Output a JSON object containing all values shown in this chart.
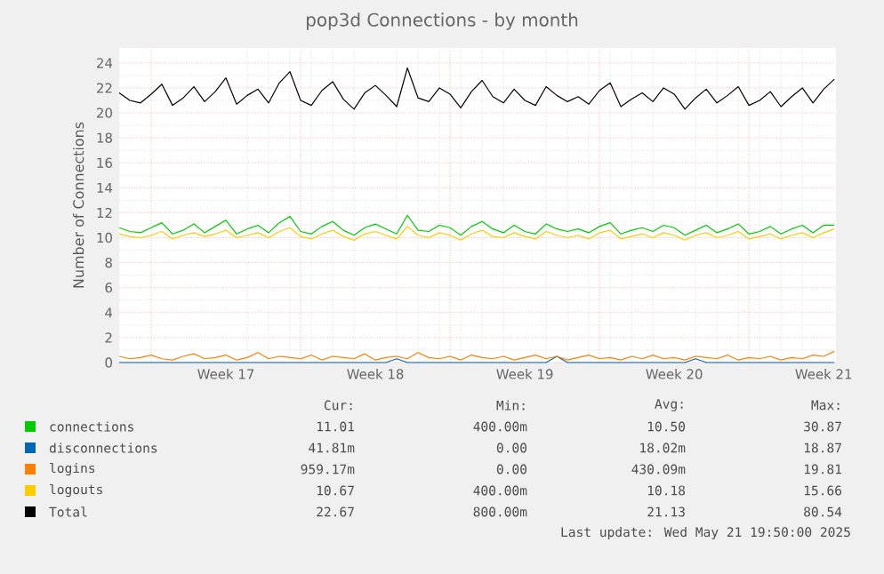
{
  "chart_data": {
    "type": "line",
    "title": "pop3d Connections - by month",
    "ylabel": "Number of Connections",
    "x": [
      "2025-04-18T06:00",
      "2025-04-18T18:00",
      "2025-04-19T06:00",
      "2025-04-19T18:00",
      "2025-04-20T06:00",
      "2025-04-20T18:00",
      "2025-04-21T06:00",
      "2025-04-21T18:00",
      "2025-04-22T06:00",
      "2025-04-22T18:00",
      "2025-04-23T06:00",
      "2025-04-23T18:00",
      "2025-04-24T06:00",
      "2025-04-24T18:00",
      "2025-04-25T06:00",
      "2025-04-25T18:00",
      "2025-04-26T06:00",
      "2025-04-26T18:00",
      "2025-04-27T06:00",
      "2025-04-27T18:00",
      "2025-04-28T06:00",
      "2025-04-28T18:00",
      "2025-04-29T06:00",
      "2025-04-29T18:00",
      "2025-04-30T06:00",
      "2025-04-30T18:00",
      "2025-05-01T06:00",
      "2025-05-01T18:00",
      "2025-05-02T06:00",
      "2025-05-02T18:00",
      "2025-05-03T06:00",
      "2025-05-03T18:00",
      "2025-05-04T06:00",
      "2025-05-04T18:00",
      "2025-05-05T06:00",
      "2025-05-05T18:00",
      "2025-05-06T06:00",
      "2025-05-06T18:00",
      "2025-05-07T06:00",
      "2025-05-07T18:00",
      "2025-05-08T06:00",
      "2025-05-08T18:00",
      "2025-05-09T06:00",
      "2025-05-09T18:00",
      "2025-05-10T06:00",
      "2025-05-10T18:00",
      "2025-05-11T06:00",
      "2025-05-11T18:00",
      "2025-05-12T06:00",
      "2025-05-12T18:00",
      "2025-05-13T06:00",
      "2025-05-13T18:00",
      "2025-05-14T06:00",
      "2025-05-14T18:00",
      "2025-05-15T06:00",
      "2025-05-15T18:00",
      "2025-05-16T06:00",
      "2025-05-16T18:00",
      "2025-05-17T06:00",
      "2025-05-17T18:00",
      "2025-05-18T06:00",
      "2025-05-18T18:00",
      "2025-05-19T06:00",
      "2025-05-19T18:00",
      "2025-05-20T06:00",
      "2025-05-20T18:00",
      "2025-05-21T06:00",
      "2025-05-21T18:00"
    ],
    "series": [
      {
        "name": "connections",
        "color": "#00cc00",
        "values": [
          10.8,
          10.5,
          10.4,
          10.8,
          11.2,
          10.3,
          10.6,
          11.1,
          10.4,
          10.9,
          11.4,
          10.3,
          10.7,
          11.0,
          10.4,
          11.2,
          11.7,
          10.5,
          10.3,
          10.9,
          11.3,
          10.6,
          10.2,
          10.8,
          11.1,
          10.7,
          10.3,
          11.8,
          10.6,
          10.5,
          11.0,
          10.8,
          10.2,
          10.9,
          11.3,
          10.7,
          10.4,
          11.0,
          10.5,
          10.3,
          11.1,
          10.7,
          10.5,
          10.7,
          10.4,
          10.9,
          11.2,
          10.3,
          10.6,
          10.8,
          10.5,
          11.0,
          10.8,
          10.2,
          10.6,
          11.0,
          10.4,
          10.7,
          11.1,
          10.3,
          10.5,
          10.9,
          10.3,
          10.7,
          11.0,
          10.4,
          11.0,
          11.0
        ]
      },
      {
        "name": "disconnections",
        "color": "#0066b3",
        "values": [
          0,
          0,
          0,
          0,
          0,
          0,
          0,
          0,
          0,
          0,
          0,
          0,
          0,
          0,
          0,
          0,
          0,
          0,
          0,
          0,
          0,
          0,
          0,
          0,
          0,
          0,
          0.3,
          0,
          0,
          0,
          0,
          0,
          0,
          0,
          0,
          0,
          0,
          0,
          0,
          0,
          0,
          0.5,
          0,
          0,
          0,
          0,
          0,
          0,
          0,
          0,
          0,
          0,
          0,
          0,
          0.3,
          0,
          0,
          0,
          0,
          0,
          0,
          0,
          0,
          0,
          0,
          0,
          0,
          0
        ]
      },
      {
        "name": "logins",
        "color": "#ff8000",
        "values": [
          0.5,
          0.3,
          0.4,
          0.6,
          0.3,
          0.2,
          0.5,
          0.7,
          0.3,
          0.4,
          0.6,
          0.2,
          0.4,
          0.8,
          0.3,
          0.5,
          0.4,
          0.3,
          0.6,
          0.2,
          0.5,
          0.4,
          0.3,
          0.7,
          0.2,
          0.4,
          0.5,
          0.3,
          0.8,
          0.4,
          0.3,
          0.5,
          0.2,
          0.6,
          0.4,
          0.3,
          0.5,
          0.2,
          0.4,
          0.6,
          0.3,
          0.5,
          0.2,
          0.4,
          0.6,
          0.3,
          0.4,
          0.2,
          0.5,
          0.3,
          0.6,
          0.3,
          0.4,
          0.2,
          0.5,
          0.4,
          0.3,
          0.6,
          0.2,
          0.4,
          0.3,
          0.5,
          0.2,
          0.4,
          0.3,
          0.6,
          0.5,
          0.9
        ]
      },
      {
        "name": "logouts",
        "color": "#ffcc00",
        "values": [
          10.3,
          10.1,
          10.0,
          10.2,
          10.5,
          9.9,
          10.2,
          10.4,
          10.1,
          10.3,
          10.6,
          10.0,
          10.2,
          10.4,
          10.0,
          10.5,
          10.8,
          10.1,
          9.9,
          10.3,
          10.6,
          10.1,
          9.8,
          10.3,
          10.5,
          10.2,
          9.9,
          10.9,
          10.2,
          10.0,
          10.4,
          10.2,
          9.8,
          10.3,
          10.6,
          10.1,
          10.0,
          10.4,
          10.1,
          9.9,
          10.5,
          10.2,
          10.0,
          10.2,
          9.9,
          10.4,
          10.6,
          9.9,
          10.1,
          10.3,
          10.0,
          10.4,
          10.2,
          9.8,
          10.2,
          10.4,
          10.0,
          10.2,
          10.5,
          9.9,
          10.1,
          10.3,
          9.9,
          10.2,
          10.4,
          10.0,
          10.4,
          10.7
        ]
      },
      {
        "name": "Total",
        "color": "#000000",
        "values": [
          21.6,
          21.0,
          20.8,
          21.5,
          22.3,
          20.6,
          21.2,
          22.1,
          20.9,
          21.7,
          22.8,
          20.7,
          21.4,
          21.9,
          20.8,
          22.4,
          23.3,
          21.0,
          20.6,
          21.8,
          22.5,
          21.1,
          20.3,
          21.6,
          22.2,
          21.4,
          20.5,
          23.6,
          21.2,
          20.9,
          22.0,
          21.5,
          20.4,
          21.7,
          22.6,
          21.3,
          20.8,
          21.9,
          21.0,
          20.6,
          22.1,
          21.4,
          20.9,
          21.3,
          20.7,
          21.8,
          22.4,
          20.5,
          21.1,
          21.6,
          20.9,
          22.0,
          21.5,
          20.3,
          21.2,
          21.9,
          20.8,
          21.4,
          22.1,
          20.6,
          21.0,
          21.7,
          20.5,
          21.3,
          22.0,
          20.8,
          21.9,
          22.7
        ]
      }
    ],
    "xlim": [
      "2025-04-18T06:00",
      "2025-05-21T19:50"
    ],
    "xticks": [
      {
        "value": "2025-04-19T18:00",
        "label": null
      },
      {
        "value": "2025-04-23T06:00",
        "label": "Week 17"
      },
      {
        "value": "2025-04-26T18:00",
        "label": null
      },
      {
        "value": "2025-04-30T06:00",
        "label": "Week 18"
      },
      {
        "value": "2025-05-03T18:00",
        "label": null
      },
      {
        "value": "2025-05-07T06:00",
        "label": "Week 19"
      },
      {
        "value": "2025-05-10T18:00",
        "label": null
      },
      {
        "value": "2025-05-14T06:00",
        "label": "Week 20"
      },
      {
        "value": "2025-05-17T18:00",
        "label": null
      },
      {
        "value": "2025-05-21T06:00",
        "label": "Week 21"
      }
    ],
    "ylim": [
      0,
      25.2
    ],
    "yticks": [
      0,
      2,
      4,
      6,
      8,
      10,
      12,
      14,
      16,
      18,
      20,
      22,
      24
    ],
    "grid": true,
    "legend": "bottom",
    "marker": "none",
    "line_style": "solid",
    "annotations": [
      "Cur:",
      "Min:",
      "Avg:",
      "Max:",
      "11.01",
      "400.00m",
      "10.50",
      "30.87",
      "41.81m",
      "0.00",
      "18.02m",
      "18.87",
      "959.17m",
      "0.00",
      "430.09m",
      "19.81",
      "10.67",
      "400.00m",
      "10.18",
      "15.66",
      "22.67",
      "800.00m",
      "21.13",
      "80.54",
      "Last update: Wed May 21 19:50:00 2025"
    ]
  }
}
